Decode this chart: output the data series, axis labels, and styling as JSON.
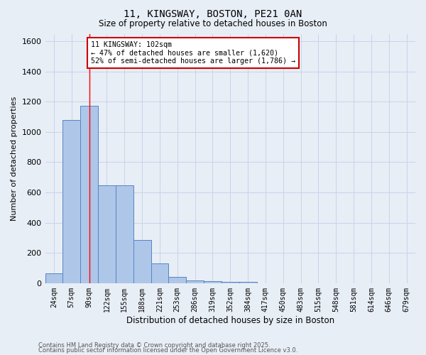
{
  "title1": "11, KINGSWAY, BOSTON, PE21 0AN",
  "title2": "Size of property relative to detached houses in Boston",
  "xlabel": "Distribution of detached houses by size in Boston",
  "ylabel": "Number of detached properties",
  "categories": [
    "24sqm",
    "57sqm",
    "90sqm",
    "122sqm",
    "155sqm",
    "188sqm",
    "221sqm",
    "253sqm",
    "286sqm",
    "319sqm",
    "352sqm",
    "384sqm",
    "417sqm",
    "450sqm",
    "483sqm",
    "515sqm",
    "548sqm",
    "581sqm",
    "614sqm",
    "646sqm",
    "679sqm"
  ],
  "values": [
    65,
    1080,
    1175,
    645,
    645,
    285,
    130,
    40,
    20,
    12,
    10,
    8,
    0,
    0,
    0,
    0,
    0,
    0,
    0,
    0,
    0
  ],
  "bar_color": "#aec6e8",
  "bar_edge_color": "#5585c5",
  "red_line_x": 2.0,
  "annotation_text": "11 KINGSWAY: 102sqm\n← 47% of detached houses are smaller (1,620)\n52% of semi-detached houses are larger (1,786) →",
  "annotation_box_color": "#ffffff",
  "annotation_box_edge": "#cc0000",
  "ylim": [
    0,
    1650
  ],
  "yticks": [
    0,
    200,
    400,
    600,
    800,
    1000,
    1200,
    1400,
    1600
  ],
  "grid_color": "#c8d4e8",
  "bg_color": "#e8eef6",
  "footer1": "Contains HM Land Registry data © Crown copyright and database right 2025.",
  "footer2": "Contains public sector information licensed under the Open Government Licence v3.0."
}
